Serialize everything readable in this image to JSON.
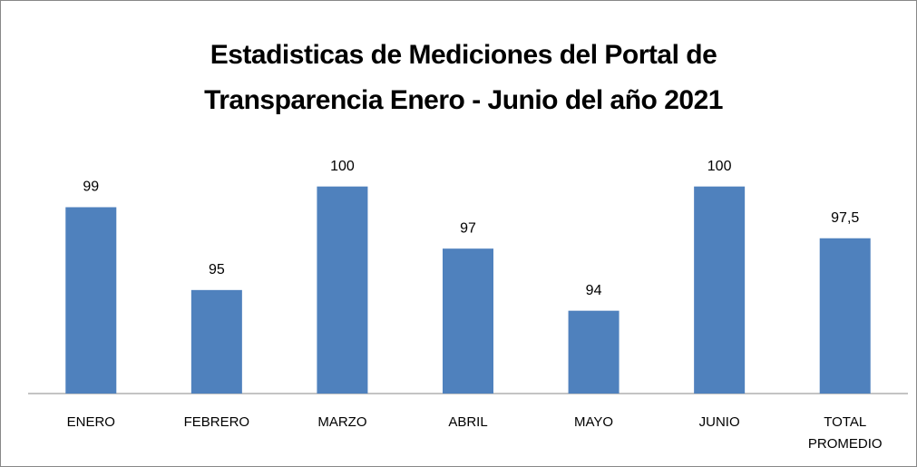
{
  "chart_data": {
    "type": "bar",
    "title": [
      "Estadisticas de Mediciones del Portal de",
      "Transparencia Enero - Junio del  año 2021"
    ],
    "categories": [
      "ENERO",
      "FEBRERO",
      "MARZO",
      "ABRIL",
      "MAYO",
      "JUNIO",
      "TOTAL PROMEDIO"
    ],
    "values": [
      99,
      95,
      100,
      97,
      94,
      100,
      97.5
    ],
    "value_labels": [
      "99",
      "95",
      "100",
      "97",
      "94",
      "100",
      "97,5"
    ],
    "color": "#4f81bd",
    "ylim": [
      90,
      102
    ]
  }
}
